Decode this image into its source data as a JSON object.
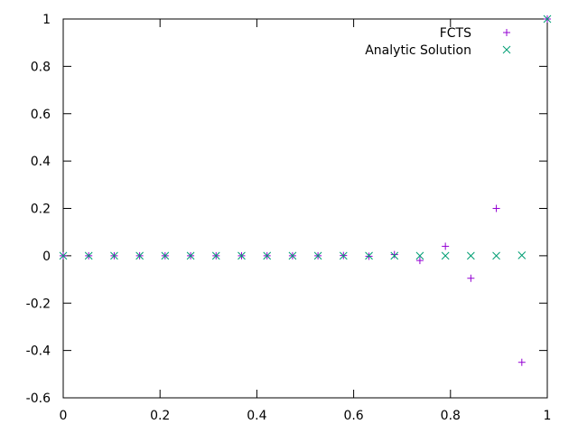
{
  "chart_data": {
    "type": "scatter",
    "xlim": [
      0,
      1
    ],
    "ylim": [
      -0.6,
      1
    ],
    "x_ticks": [
      0,
      0.2,
      0.4,
      0.6,
      0.8,
      1
    ],
    "x_tick_labels": [
      "0",
      "0.2",
      "0.4",
      "0.6",
      "0.8",
      "1"
    ],
    "y_ticks": [
      -0.6,
      -0.4,
      -0.2,
      0,
      0.2,
      0.4,
      0.6,
      0.8,
      1
    ],
    "y_tick_labels": [
      "-0.6",
      "-0.4",
      "-0.2",
      "0",
      "0.2",
      "0.4",
      "0.6",
      "0.8",
      "1"
    ],
    "grid": false,
    "legend_position": "top-right",
    "series": [
      {
        "name": "FCTS",
        "marker": "plus",
        "color": "#9400d3",
        "points": [
          [
            0,
            0
          ],
          [
            0.0526,
            0
          ],
          [
            0.1053,
            0
          ],
          [
            0.1579,
            0
          ],
          [
            0.2105,
            0
          ],
          [
            0.2632,
            0
          ],
          [
            0.3158,
            0
          ],
          [
            0.3684,
            0
          ],
          [
            0.4211,
            0
          ],
          [
            0.4737,
            0
          ],
          [
            0.5263,
            0
          ],
          [
            0.5789,
            0.001
          ],
          [
            0.6316,
            -0.002
          ],
          [
            0.6842,
            0.005
          ],
          [
            0.7368,
            -0.02
          ],
          [
            0.7895,
            0.04
          ],
          [
            0.8421,
            -0.095
          ],
          [
            0.8947,
            0.2
          ],
          [
            0.9474,
            -0.45
          ],
          [
            1,
            1
          ]
        ]
      },
      {
        "name": "Analytic Solution",
        "marker": "x",
        "color": "#009e73",
        "points": [
          [
            0,
            0
          ],
          [
            0.0526,
            0
          ],
          [
            0.1053,
            0
          ],
          [
            0.1579,
            0
          ],
          [
            0.2105,
            0
          ],
          [
            0.2632,
            0
          ],
          [
            0.3158,
            0
          ],
          [
            0.3684,
            0
          ],
          [
            0.4211,
            0
          ],
          [
            0.4737,
            0
          ],
          [
            0.5263,
            0
          ],
          [
            0.5789,
            0
          ],
          [
            0.6316,
            0
          ],
          [
            0.6842,
            0
          ],
          [
            0.7368,
            0
          ],
          [
            0.7895,
            0
          ],
          [
            0.8421,
            0
          ],
          [
            0.8947,
            0
          ],
          [
            0.9474,
            0.002
          ],
          [
            1,
            1
          ]
        ]
      }
    ]
  }
}
